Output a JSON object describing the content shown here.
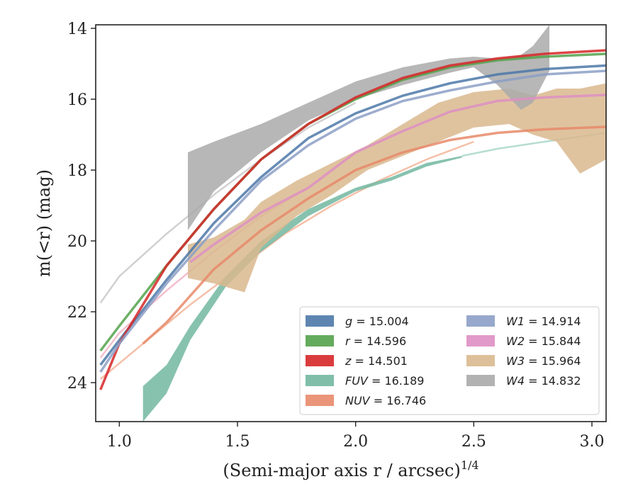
{
  "chart_data": {
    "type": "line",
    "title": "",
    "xlabel": "(Semi-major axis r / arcsec)",
    "xlabel_superscript": "1/4",
    "ylabel": "m(<r) (mag)",
    "xlim": [
      0.9,
      3.06
    ],
    "ylim": [
      25.1,
      13.9
    ],
    "y_inverted": true,
    "grid": false,
    "legend_position": "lower-right",
    "x_ticks": [
      {
        "value": 1.0,
        "label": "1.0"
      },
      {
        "value": 1.5,
        "label": "1.5"
      },
      {
        "value": 2.0,
        "label": "2.0"
      },
      {
        "value": 2.5,
        "label": "2.5"
      },
      {
        "value": 3.0,
        "label": "3.0"
      }
    ],
    "y_ticks": [
      {
        "value": 14,
        "label": "14"
      },
      {
        "value": 16,
        "label": "16"
      },
      {
        "value": 18,
        "label": "18"
      },
      {
        "value": 20,
        "label": "20"
      },
      {
        "value": 22,
        "label": "22"
      },
      {
        "value": 24,
        "label": "24"
      }
    ],
    "model_curves": [
      {
        "color": "#cccccc",
        "x": [
          0.92,
          1.0,
          1.2,
          1.4,
          1.6,
          1.8,
          2.0
        ],
        "y": [
          21.75,
          21.0,
          19.8,
          18.7,
          17.7,
          16.8,
          16.1
        ]
      },
      {
        "color": "#f2b8c6",
        "x": [
          0.92,
          1.0,
          1.2,
          1.4,
          1.6,
          1.8
        ],
        "y": [
          23.3,
          22.6,
          21.4,
          20.3,
          19.3,
          18.5
        ]
      },
      {
        "color": "#f4b99e",
        "x": [
          0.92,
          1.1,
          1.3,
          1.5,
          1.7,
          1.9,
          2.1,
          2.3,
          2.5
        ],
        "y": [
          23.9,
          22.9,
          21.8,
          20.8,
          19.8,
          19.0,
          18.3,
          17.7,
          17.2
        ]
      },
      {
        "color": "#aed9cb",
        "x": [
          2.45,
          2.6,
          2.8,
          3.06
        ],
        "y": [
          17.6,
          17.4,
          17.2,
          16.95
        ]
      }
    ],
    "series": [
      {
        "name": "g = 15.004",
        "color": "#4c78a8",
        "style": "line",
        "x": [
          0.92,
          1.0,
          1.2,
          1.4,
          1.6,
          1.8,
          2.0,
          2.2,
          2.4,
          2.6,
          2.8,
          3.06
        ],
        "y": [
          23.5,
          22.8,
          21.1,
          19.5,
          18.2,
          17.1,
          16.4,
          15.9,
          15.55,
          15.3,
          15.15,
          15.05
        ]
      },
      {
        "name": "r = 14.596",
        "color": "#54a24b",
        "style": "line",
        "x": [
          0.92,
          1.0,
          1.2,
          1.4,
          1.6,
          1.8,
          2.0,
          2.2,
          2.4,
          2.6,
          2.8,
          3.06
        ],
        "y": [
          23.1,
          22.4,
          20.7,
          19.1,
          17.7,
          16.7,
          16.0,
          15.45,
          15.1,
          14.9,
          14.8,
          14.72
        ]
      },
      {
        "name": "z = 14.501",
        "color": "#d62728",
        "style": "line",
        "x": [
          0.92,
          1.0,
          1.2,
          1.4,
          1.6,
          1.8,
          2.0,
          2.2,
          2.4,
          2.6,
          2.8,
          3.06
        ],
        "y": [
          24.2,
          22.9,
          20.7,
          19.1,
          17.7,
          16.7,
          15.95,
          15.4,
          15.05,
          14.85,
          14.72,
          14.62
        ]
      },
      {
        "name": "FUV = 16.189",
        "color": "#72b7a1",
        "style": "band",
        "x": [
          1.1,
          1.2,
          1.3,
          1.45,
          1.6,
          1.8,
          2.0,
          2.15,
          2.3,
          2.45
        ],
        "y_upper": [
          24.1,
          23.5,
          22.4,
          21.0,
          20.0,
          19.1,
          18.5,
          18.2,
          17.8,
          17.6
        ],
        "y_lower": [
          25.1,
          24.3,
          22.8,
          21.3,
          20.3,
          19.3,
          18.6,
          18.3,
          17.9,
          17.65
        ]
      },
      {
        "name": "NUV = 16.746",
        "color": "#e8896a",
        "style": "line",
        "x": [
          1.1,
          1.2,
          1.4,
          1.6,
          1.8,
          2.0,
          2.2,
          2.4,
          2.6,
          2.8,
          3.06
        ],
        "y": [
          22.9,
          22.3,
          20.8,
          19.7,
          18.8,
          18.0,
          17.5,
          17.15,
          16.95,
          16.85,
          16.78
        ]
      },
      {
        "name": "W1 = 14.914",
        "color": "#8c9fc6",
        "style": "line",
        "x": [
          0.92,
          1.0,
          1.2,
          1.4,
          1.6,
          1.8,
          2.0,
          2.2,
          2.4,
          2.6,
          2.8,
          3.06
        ],
        "y": [
          23.7,
          22.9,
          21.2,
          19.7,
          18.3,
          17.3,
          16.55,
          16.05,
          15.75,
          15.5,
          15.3,
          15.2
        ]
      },
      {
        "name": "W2 = 15.844",
        "color": "#de8fc3",
        "style": "line",
        "x": [
          1.3,
          1.4,
          1.6,
          1.8,
          2.0,
          2.2,
          2.4,
          2.6,
          2.8,
          3.06
        ],
        "y": [
          20.6,
          20.1,
          19.2,
          18.5,
          17.5,
          16.9,
          16.35,
          16.05,
          15.95,
          15.88
        ]
      },
      {
        "name": "W3 = 15.964",
        "color": "#d9b98e",
        "style": "band",
        "x": [
          1.29,
          1.4,
          1.53,
          1.6,
          1.75,
          1.9,
          2.05,
          2.2,
          2.35,
          2.5,
          2.65,
          2.75,
          2.85,
          2.95,
          3.06
        ],
        "y_upper": [
          20.1,
          19.9,
          19.4,
          18.9,
          18.3,
          17.8,
          17.3,
          16.7,
          16.1,
          15.8,
          15.7,
          15.9,
          15.7,
          15.7,
          15.55
        ],
        "y_lower": [
          21.05,
          21.2,
          21.45,
          20.2,
          19.3,
          18.7,
          18.0,
          17.6,
          17.2,
          16.8,
          16.7,
          17.0,
          17.2,
          18.1,
          17.7
        ]
      },
      {
        "name": "W4 = 14.832",
        "color": "#aaaaaa",
        "style": "band",
        "x": [
          1.29,
          1.4,
          1.6,
          1.8,
          2.0,
          2.2,
          2.4,
          2.5,
          2.6,
          2.7,
          2.75,
          2.82
        ],
        "y_upper": [
          17.5,
          17.2,
          16.7,
          16.1,
          15.5,
          15.1,
          14.85,
          14.8,
          14.85,
          14.75,
          14.5,
          13.9
        ],
        "y_lower": [
          19.7,
          18.6,
          17.5,
          16.6,
          16.0,
          15.6,
          15.25,
          15.1,
          15.6,
          16.3,
          16.1,
          15.2
        ]
      }
    ],
    "legend": {
      "columns": [
        [
          {
            "var": "g",
            "value": "= 15.004",
            "color": "#4c78a8"
          },
          {
            "var": "r",
            "value": "= 14.596",
            "color": "#54a24b"
          },
          {
            "var": "z",
            "value": "= 14.501",
            "color": "#d62728"
          },
          {
            "var": "FUV",
            "value": "= 16.189",
            "color": "#72b7a1"
          },
          {
            "var": "NUV",
            "value": "= 16.746",
            "color": "#e8896a"
          }
        ],
        [
          {
            "var": "W1",
            "value": "= 14.914",
            "color": "#8c9fc6"
          },
          {
            "var": "W2",
            "value": "= 15.844",
            "color": "#de8fc3"
          },
          {
            "var": "W3",
            "value": "= 15.964",
            "color": "#d9b98e"
          },
          {
            "var": "W4",
            "value": "= 14.832",
            "color": "#aaaaaa"
          }
        ]
      ]
    }
  }
}
